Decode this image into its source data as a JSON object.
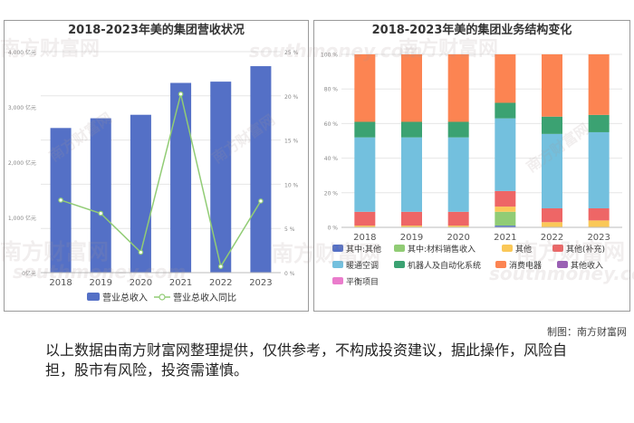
{
  "left_chart": {
    "title": "2018-2023年美的集团营收状况",
    "legend": [
      "营业总收入",
      "营业总收入同比"
    ],
    "y_left_ticks": [
      "0亿元",
      "1,000 亿元",
      "2,000 亿元",
      "3,000 亿元",
      "4,000 亿元"
    ],
    "y_right_ticks": [
      "0 %",
      "5 %",
      "10 %",
      "15 %",
      "20 %",
      "25 %"
    ],
    "x_ticks": [
      "2018",
      "2019",
      "2020",
      "2021",
      "2022",
      "2023"
    ]
  },
  "right_chart": {
    "title": "2018-2023年美的集团业务结构变化",
    "y_ticks": [
      "0 %",
      "20 %",
      "40 %",
      "60 %",
      "80 %",
      "100 %"
    ],
    "x_ticks": [
      "2018",
      "2019",
      "2020",
      "2021",
      "2022",
      "2023"
    ],
    "legend": [
      "其中:其他",
      "其中:材料销售收入",
      "其他",
      "其他(补充)",
      "暖通空调",
      "机器人及自动化系统",
      "消费电器",
      "其他收入",
      "平衡项目"
    ]
  },
  "chart_data": [
    {
      "type": "bar",
      "title": "2018-2023年美的集团营收状况",
      "categories": [
        "2018",
        "2019",
        "2020",
        "2021",
        "2022",
        "2023"
      ],
      "series": [
        {
          "name": "营业总收入",
          "type": "bar",
          "axis": "left",
          "unit": "亿元",
          "color": "#5470c6",
          "values": [
            2618,
            2794,
            2857,
            3434,
            3457,
            3737
          ]
        },
        {
          "name": "营业总收入同比",
          "type": "line",
          "axis": "right",
          "unit": "%",
          "color": "#91cc75",
          "values": [
            8.2,
            6.7,
            2.3,
            20.2,
            0.7,
            8.1
          ]
        }
      ],
      "ylim_left": [
        0,
        4000
      ],
      "ylim_right": [
        0,
        25
      ]
    },
    {
      "type": "bar",
      "stacked": true,
      "title": "2018-2023年美的集团业务结构变化",
      "categories": [
        "2018",
        "2019",
        "2020",
        "2021",
        "2022",
        "2023"
      ],
      "ylim": [
        0,
        100
      ],
      "series": [
        {
          "name": "其中:其他",
          "color": "#5470c6",
          "values": [
            0,
            0,
            0,
            1,
            0,
            0
          ]
        },
        {
          "name": "其中:材料销售收入",
          "color": "#91cc75",
          "values": [
            0,
            0,
            0,
            8,
            0,
            0
          ]
        },
        {
          "name": "其他",
          "color": "#fac858",
          "values": [
            1,
            1,
            1,
            3,
            3,
            4
          ]
        },
        {
          "name": "其他(补充)",
          "color": "#ee6666",
          "values": [
            8,
            8,
            8,
            9,
            8,
            7
          ]
        },
        {
          "name": "暖通空调",
          "color": "#73c0de",
          "values": [
            43,
            43,
            43,
            42,
            43,
            44
          ]
        },
        {
          "name": "机器人及自动化系统",
          "color": "#3ba272",
          "values": [
            9,
            9,
            9,
            9,
            10,
            10
          ]
        },
        {
          "name": "消费电器",
          "color": "#fc8452",
          "values": [
            39,
            39,
            39,
            28,
            36,
            35
          ]
        },
        {
          "name": "其他收入",
          "color": "#9a60b4",
          "values": [
            0,
            0,
            0,
            0,
            0,
            0
          ]
        },
        {
          "name": "平衡项目",
          "color": "#ea7ccc",
          "values": [
            0,
            0,
            0,
            0,
            0,
            0
          ]
        }
      ]
    }
  ],
  "watermark": {
    "brand": "南方财富网",
    "url": "southmoney.com"
  },
  "credit": "制图：南方财富网",
  "disclaimer": "以上数据由南方财富网整理提供，仅供参考，不构成投资建议，据此操作，风险自担，股市有风险，投资需谨慎。",
  "colors": {
    "panel_border": "#9a9a9a",
    "grid": "#e6e6e6",
    "axis": "#bbbbbb"
  }
}
